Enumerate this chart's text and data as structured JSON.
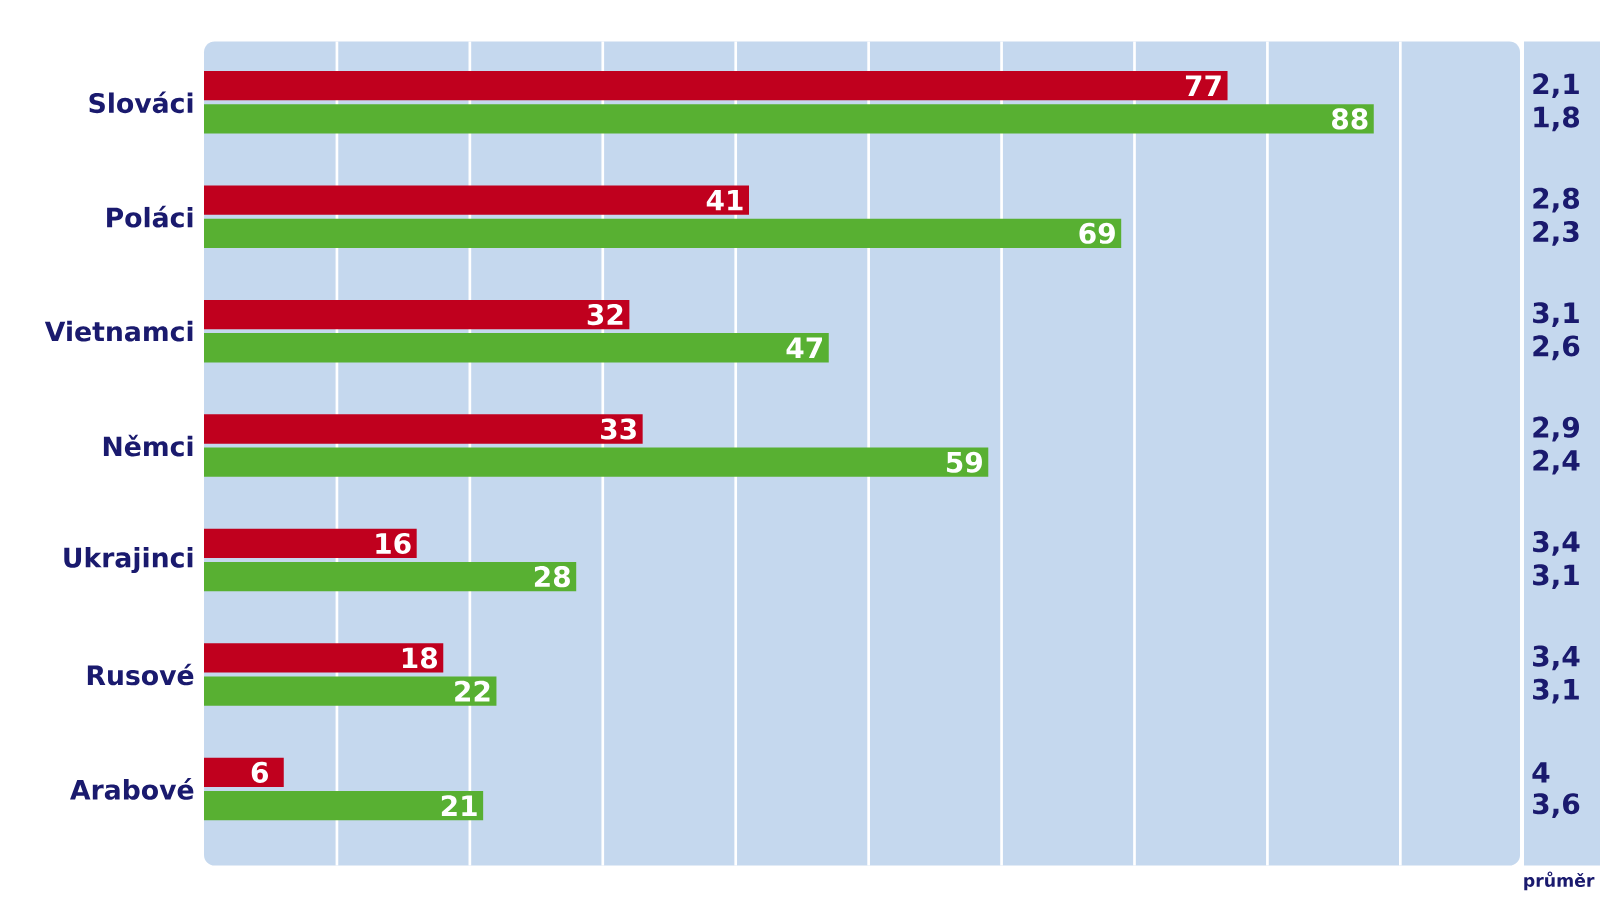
{
  "chart_data": {
    "type": "bar",
    "orientation": "horizontal",
    "categories": [
      "Slováci",
      "Poláci",
      "Vietnamci",
      "Němci",
      "Ukrajinci",
      "Rusové",
      "Arabové"
    ],
    "series": [
      {
        "color": "#c0001e",
        "values": [
          77,
          41,
          32,
          33,
          16,
          18,
          6
        ]
      },
      {
        "color": "#58b032",
        "values": [
          88,
          69,
          47,
          59,
          28,
          22,
          21
        ]
      }
    ],
    "xlim": [
      0,
      99
    ],
    "xticks": [
      {
        "value": 10,
        "label": null
      },
      {
        "value": 20,
        "label": null
      },
      {
        "value": 30,
        "label": null
      },
      {
        "value": 40,
        "label": null
      },
      {
        "value": 50,
        "label": null
      },
      {
        "value": 60,
        "label": null
      },
      {
        "value": 70,
        "label": null
      },
      {
        "value": 80,
        "label": null
      },
      {
        "value": 90,
        "label": null
      }
    ],
    "grid": "x",
    "tick_labels": "y",
    "data_labels": true,
    "annotations": [
      "2,1",
      "1,8",
      "2,8",
      "2,3",
      "3,1",
      "2,6",
      "2,9",
      "2,4",
      "3,4",
      "3,1",
      "3,4",
      "3,1",
      "4",
      "3,6",
      "průměr"
    ]
  }
}
